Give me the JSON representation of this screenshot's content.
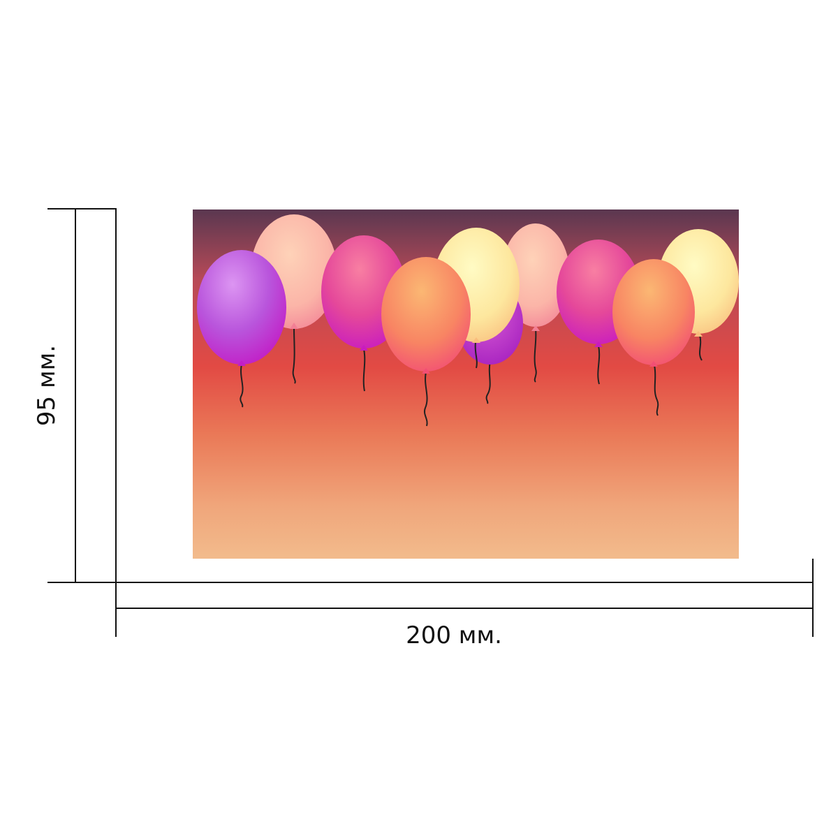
{
  "dimensions": {
    "width_label": "200 мм.",
    "height_label": "95 мм."
  },
  "artwork": {
    "subject": "balloons-on-gradient",
    "gradient_colors": [
      "#5a3750",
      "#b74a57",
      "#e24a44",
      "#ea7a58",
      "#f0a67b",
      "#f2bb8c"
    ],
    "balloons": [
      {
        "name": "balloon-purple-left",
        "color": "#b94ad8"
      },
      {
        "name": "balloon-peach-1",
        "color": "#f7a59b"
      },
      {
        "name": "balloon-magenta-1",
        "color": "#d8339b"
      },
      {
        "name": "balloon-orange-1",
        "color": "#f67e5f"
      },
      {
        "name": "balloon-yellow-1",
        "color": "#fbe59a"
      },
      {
        "name": "balloon-purple-back",
        "color": "#b230c2"
      },
      {
        "name": "balloon-peach-2",
        "color": "#f7a59b"
      },
      {
        "name": "balloon-magenta-2",
        "color": "#d62f9a"
      },
      {
        "name": "balloon-orange-2",
        "color": "#f67e5f"
      },
      {
        "name": "balloon-yellow-2",
        "color": "#fbe59a"
      }
    ]
  },
  "colors": {
    "dimension_line": "#111111",
    "background": "#ffffff"
  }
}
